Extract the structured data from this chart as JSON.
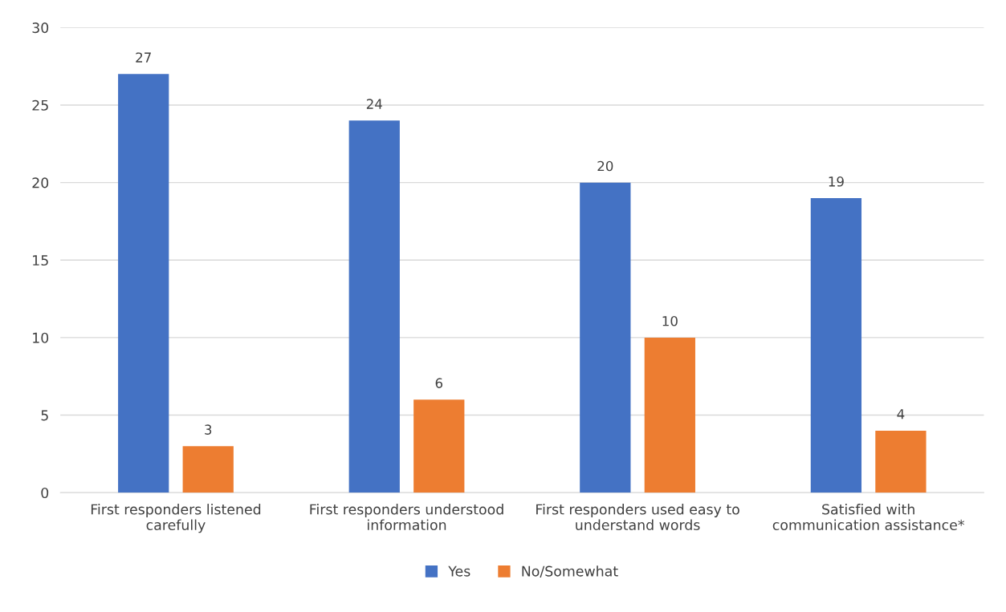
{
  "chart_data": {
    "type": "bar",
    "categories": [
      "First responders listened\ncarefully",
      "First responders understood\ninformation",
      "First responders used easy to\nunderstand words",
      "Satisfied with\ncommunication assistance*"
    ],
    "series": [
      {
        "name": "Yes",
        "color": "#4472c4",
        "values": [
          27,
          24,
          20,
          19
        ]
      },
      {
        "name": "No/Somewhat",
        "color": "#ed7d31",
        "values": [
          3,
          6,
          10,
          4
        ]
      }
    ],
    "ylim": [
      0,
      30
    ],
    "yticks": [
      0,
      5,
      10,
      15,
      20,
      25,
      30
    ],
    "grid": "y",
    "legend": "bottom",
    "data_labels": true
  }
}
